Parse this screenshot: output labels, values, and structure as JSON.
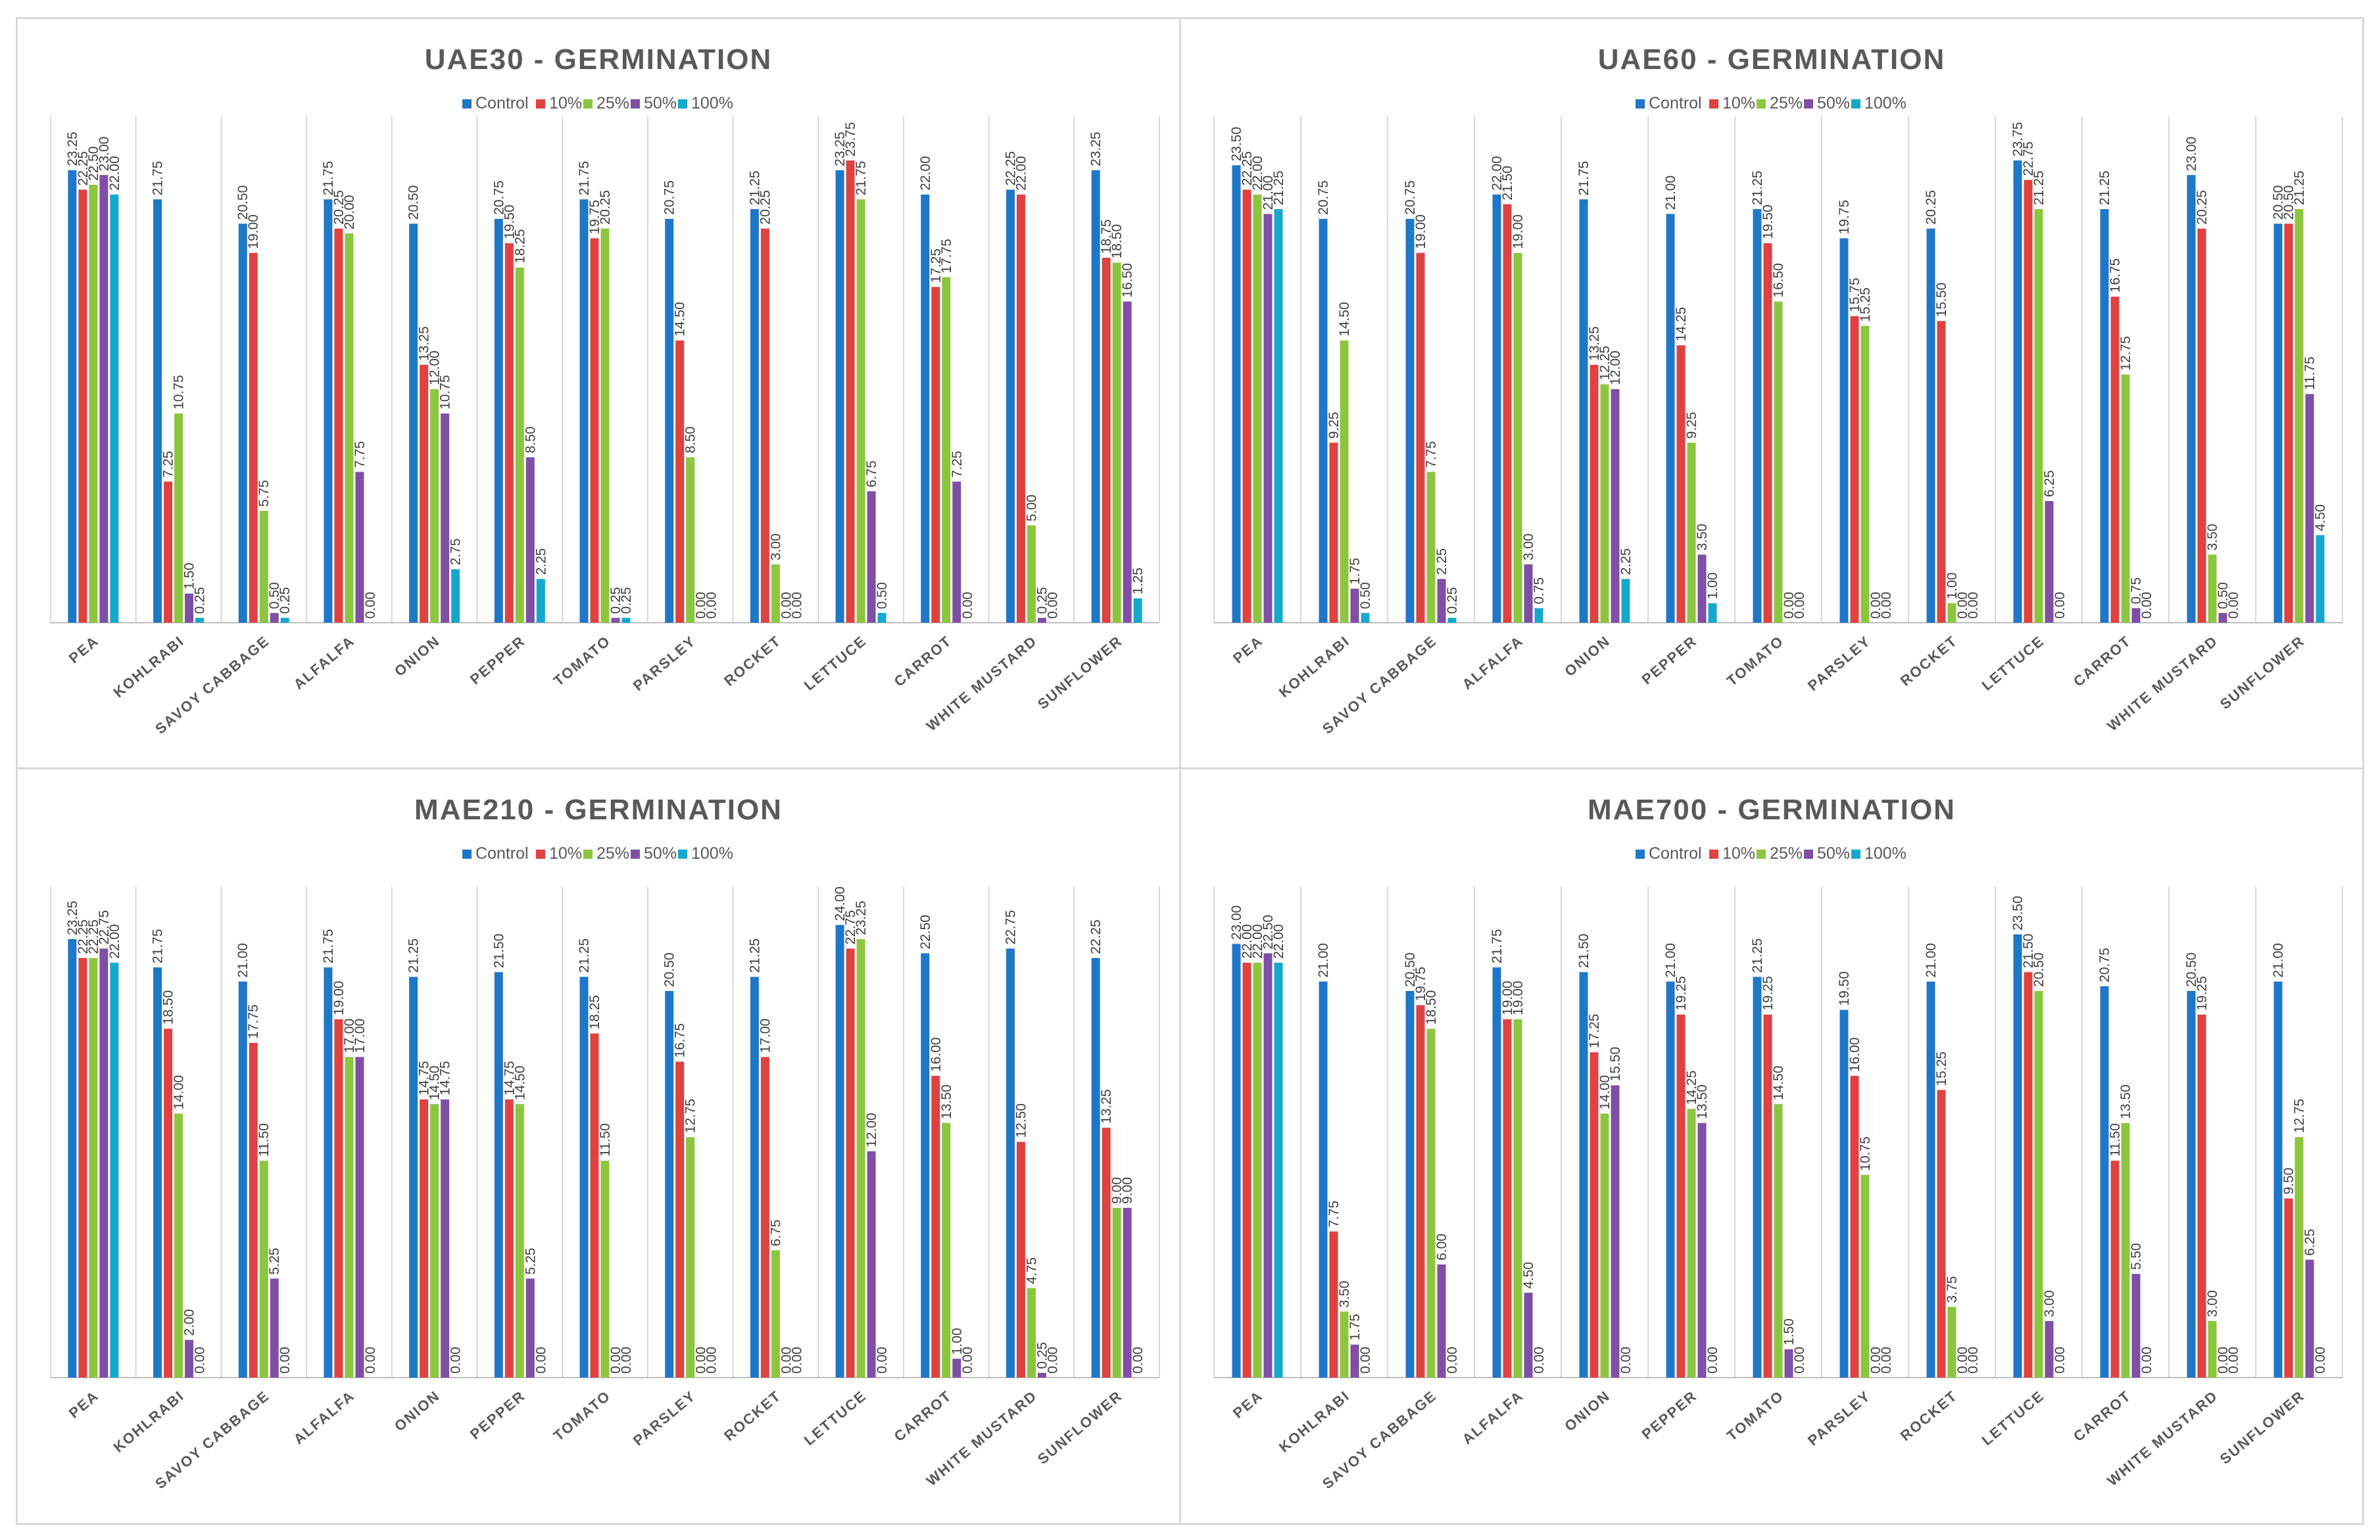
{
  "series_colors": [
    "#1f77c8",
    "#e04141",
    "#8cc63f",
    "#7f4fa5",
    "#14a9cc"
  ],
  "chart_data": [
    {
      "type": "bar",
      "title": "UAE30  -  GERMINATION",
      "legend_position": "top",
      "ylim": [
        0,
        25
      ],
      "categories": [
        "PEA",
        "KOHLRABI",
        "SAVOY CABBAGE",
        "ALFALFA",
        "ONION",
        "PEPPER",
        "TOMATO",
        "PARSLEY",
        "ROCKET",
        "LETTUCE",
        "CARROT",
        "WHITE MUSTARD",
        "SUNFLOWER"
      ],
      "series": [
        {
          "name": "Control",
          "values": [
            23.25,
            21.75,
            20.5,
            21.75,
            20.5,
            20.75,
            21.75,
            20.75,
            21.25,
            23.25,
            22.0,
            22.25,
            23.25
          ]
        },
        {
          "name": "10%",
          "values": [
            22.25,
            7.25,
            19.0,
            20.25,
            13.25,
            19.5,
            19.75,
            14.5,
            20.25,
            23.75,
            17.25,
            22.0,
            18.75
          ]
        },
        {
          "name": "25%",
          "values": [
            22.5,
            10.75,
            5.75,
            20.0,
            12.0,
            18.25,
            20.25,
            8.5,
            3.0,
            21.75,
            17.75,
            5.0,
            18.5
          ]
        },
        {
          "name": "50%",
          "values": [
            23.0,
            1.5,
            0.5,
            7.75,
            10.75,
            8.5,
            0.25,
            0.0,
            0.0,
            6.75,
            7.25,
            0.25,
            16.5
          ]
        },
        {
          "name": "100%",
          "values": [
            22.0,
            0.25,
            0.25,
            0.0,
            2.75,
            2.25,
            0.25,
            0.0,
            0.0,
            0.5,
            0.0,
            0.0,
            1.25
          ]
        }
      ],
      "labels": [
        [
          "23.25",
          "22.25",
          "22.50",
          "23.00",
          "22.00"
        ],
        [
          "21.75",
          "7.25",
          "10.75",
          "1.50",
          "0.25"
        ],
        [
          "20.50",
          "19.00",
          "5.75",
          "0.50",
          "0.25"
        ],
        [
          "21.75",
          "20.25",
          "20.00",
          "7.75",
          "0.00"
        ],
        [
          "20.50",
          "13.25",
          "12.00",
          "10.75",
          "2.75"
        ],
        [
          "20.75",
          "19.50",
          "18.25",
          "8.50",
          "2.25"
        ],
        [
          "21.75",
          "19.75",
          "20.25",
          "0.25",
          "0.25"
        ],
        [
          "20.75",
          "14.50",
          "8.50",
          "0.00",
          "0.00"
        ],
        [
          "21.25",
          "20.25",
          "3.00",
          "0.00",
          "0.00"
        ],
        [
          "23.25",
          "23.75",
          "21.75",
          "6.75",
          "0.50"
        ],
        [
          "22.00",
          "17.25",
          "17.75",
          "7.25",
          "0.00"
        ],
        [
          "22.25",
          "22.00",
          "5.00",
          "0.25",
          "0.00"
        ],
        [
          "23.25",
          "18.75",
          "18.50",
          "16.50",
          "1.25"
        ]
      ]
    },
    {
      "type": "bar",
      "title": "UAE60  -  GERMINATION",
      "legend_position": "top",
      "ylim": [
        0,
        25
      ],
      "categories": [
        "PEA",
        "KOHLRABI",
        "SAVOY CABBAGE",
        "ALFALFA",
        "ONION",
        "PEPPER",
        "TOMATO",
        "PARSLEY",
        "ROCKET",
        "LETTUCE",
        "CARROT",
        "WHITE MUSTARD",
        "SUNFLOWER"
      ],
      "series": [
        {
          "name": "Control",
          "values": [
            23.5,
            20.75,
            20.75,
            22.0,
            21.75,
            21.0,
            21.25,
            19.75,
            20.25,
            23.75,
            21.25,
            23.0,
            20.5
          ]
        },
        {
          "name": "10%",
          "values": [
            22.25,
            9.25,
            19.0,
            21.5,
            13.25,
            14.25,
            19.5,
            15.75,
            15.5,
            22.75,
            16.75,
            20.25,
            20.5
          ]
        },
        {
          "name": "25%",
          "values": [
            22.0,
            14.5,
            7.75,
            19.0,
            12.25,
            9.25,
            16.5,
            15.25,
            1.0,
            21.25,
            12.75,
            3.5,
            21.25
          ]
        },
        {
          "name": "50%",
          "values": [
            21.0,
            1.75,
            2.25,
            3.0,
            12.0,
            3.5,
            0.0,
            0.0,
            0.0,
            6.25,
            0.75,
            0.5,
            11.75
          ]
        },
        {
          "name": "100%",
          "values": [
            21.25,
            0.5,
            0.25,
            0.75,
            2.25,
            1.0,
            0.0,
            0.0,
            0.0,
            0.0,
            0.0,
            0.0,
            4.5
          ]
        }
      ],
      "labels": [
        [
          "23.50",
          "22.25",
          "22.00",
          "21.00",
          "21.25"
        ],
        [
          "20.75",
          "9.25",
          "14.50",
          "1.75",
          "0.50"
        ],
        [
          "20.75",
          "19.00",
          "7.75",
          "2.25",
          "0.25"
        ],
        [
          "22.00",
          "21.50",
          "19.00",
          "3.00",
          "0.75"
        ],
        [
          "21.75",
          "13.25",
          "12.25",
          "12.00",
          "2.25"
        ],
        [
          "21.00",
          "14.25",
          "9.25",
          "3.50",
          "1.00"
        ],
        [
          "21.25",
          "19.50",
          "16.50",
          "0.00",
          "0.00"
        ],
        [
          "19.75",
          "15.75",
          "15.25",
          "0.00",
          "0.00"
        ],
        [
          "20.25",
          "15.50",
          "1.00",
          "0.00",
          "0.00"
        ],
        [
          "23.75",
          "22.75",
          "21.25",
          "6.25",
          "0.00"
        ],
        [
          "21.25",
          "16.75",
          "12.75",
          "0.75",
          "0.00"
        ],
        [
          "23.00",
          "20.25",
          "3.50",
          "0.50",
          "0.00"
        ],
        [
          "20.50",
          "20.50",
          "21.25",
          "11.75",
          "4.50"
        ]
      ]
    },
    {
      "type": "bar",
      "title": "MAE210  -  GERMINATION",
      "legend_position": "top",
      "ylim": [
        0,
        25
      ],
      "categories": [
        "PEA",
        "KOHLRABI",
        "SAVOY CABBAGE",
        "ALFALFA",
        "ONION",
        "PEPPER",
        "TOMATO",
        "PARSLEY",
        "ROCKET",
        "LETTUCE",
        "CARROT",
        "WHITE MUSTARD",
        "SUNFLOWER"
      ],
      "series": [
        {
          "name": "Control",
          "values": [
            23.25,
            21.75,
            21.0,
            21.75,
            21.25,
            21.5,
            21.25,
            20.5,
            21.25,
            24.0,
            22.5,
            22.75,
            22.25
          ]
        },
        {
          "name": "10%",
          "values": [
            22.25,
            18.5,
            17.75,
            19.0,
            14.75,
            14.75,
            18.25,
            16.75,
            17.0,
            22.75,
            16.0,
            12.5,
            13.25
          ]
        },
        {
          "name": "25%",
          "values": [
            22.25,
            14.0,
            11.5,
            17.0,
            14.5,
            14.5,
            11.5,
            12.75,
            6.75,
            23.25,
            13.5,
            4.75,
            9.0
          ]
        },
        {
          "name": "50%",
          "values": [
            22.75,
            2.0,
            5.25,
            17.0,
            14.75,
            5.25,
            0.0,
            0.0,
            0.0,
            12.0,
            1.0,
            0.25,
            9.0
          ]
        },
        {
          "name": "100%",
          "values": [
            22.0,
            0.0,
            0.0,
            0.0,
            0.0,
            0.0,
            0.0,
            0.0,
            0.0,
            0.0,
            0.0,
            0.0,
            0.0
          ]
        }
      ],
      "labels": [
        [
          "23.25",
          "22.25",
          "22.25",
          "22.75",
          "22.00"
        ],
        [
          "21.75",
          "18.50",
          "14.00",
          "2.00",
          "0.00"
        ],
        [
          "21.00",
          "17.75",
          "11.50",
          "5.25",
          "0.00"
        ],
        [
          "21.75",
          "19.00",
          "17.00",
          "17.00",
          "0.00"
        ],
        [
          "21.25",
          "14.75",
          "14.50",
          "14.75",
          "0.00"
        ],
        [
          "21.50",
          "14.75",
          "14.50",
          "5.25",
          "0.00"
        ],
        [
          "21.25",
          "18.25",
          "11.50",
          "0.00",
          "0.00"
        ],
        [
          "20.50",
          "16.75",
          "12.75",
          "0.00",
          "0.00"
        ],
        [
          "21.25",
          "17.00",
          "6.75",
          "0.00",
          "0.00"
        ],
        [
          "24.00",
          "22.75",
          "23.25",
          "12.00",
          "0.00"
        ],
        [
          "22.50",
          "16.00",
          "13.50",
          "1.00",
          "0.00"
        ],
        [
          "22.75",
          "12.50",
          "4.75",
          "0.25",
          "0.00"
        ],
        [
          "22.25",
          "13.25",
          "9.00",
          "9.00",
          "0.00"
        ]
      ]
    },
    {
      "type": "bar",
      "title": "MAE700  -  GERMINATION",
      "legend_position": "top",
      "ylim": [
        0,
        25
      ],
      "categories": [
        "PEA",
        "KOHLRABI",
        "SAVOY CABBAGE",
        "ALFALFA",
        "ONION",
        "PEPPER",
        "TOMATO",
        "PARSLEY",
        "ROCKET",
        "LETTUCE",
        "CARROT",
        "WHITE MUSTARD",
        "SUNFLOWER"
      ],
      "series": [
        {
          "name": "Control",
          "values": [
            23.0,
            21.0,
            20.5,
            21.75,
            21.5,
            21.0,
            21.25,
            19.5,
            21.0,
            23.5,
            20.75,
            20.5,
            21.0
          ]
        },
        {
          "name": "10%",
          "values": [
            22.0,
            7.75,
            19.75,
            19.0,
            17.25,
            19.25,
            19.25,
            16.0,
            15.25,
            21.5,
            11.5,
            19.25,
            9.5
          ]
        },
        {
          "name": "25%",
          "values": [
            22.0,
            3.5,
            18.5,
            19.0,
            14.0,
            14.25,
            14.5,
            10.75,
            3.75,
            20.5,
            13.5,
            3.0,
            12.75
          ]
        },
        {
          "name": "50%",
          "values": [
            22.5,
            1.75,
            6.0,
            4.5,
            15.5,
            13.5,
            1.5,
            0.0,
            0.0,
            3.0,
            5.5,
            0.0,
            6.25
          ]
        },
        {
          "name": "100%",
          "values": [
            22.0,
            0.0,
            0.0,
            0.0,
            0.0,
            0.0,
            0.0,
            0.0,
            0.0,
            0.0,
            0.0,
            0.0,
            0.0
          ]
        }
      ],
      "labels": [
        [
          "23.00",
          "22.00",
          "22.00",
          "22.50",
          "22.00"
        ],
        [
          "21.00",
          "7.75",
          "3.50",
          "1.75",
          "0.00"
        ],
        [
          "20.50",
          "19.75",
          "18.50",
          "6.00",
          "0.00"
        ],
        [
          "21.75",
          "19.00",
          "19.00",
          "4.50",
          "0.00"
        ],
        [
          "21.50",
          "17.25",
          "14.00",
          "15.50",
          "0.00"
        ],
        [
          "21.00",
          "19.25",
          "14.25",
          "13.50",
          "0.00"
        ],
        [
          "21.25",
          "19.25",
          "14.50",
          "1.50",
          "0.00"
        ],
        [
          "19.50",
          "16.00",
          "10.75",
          "0.00",
          "0.00"
        ],
        [
          "21.00",
          "15.25",
          "3.75",
          "0.00",
          "0.00"
        ],
        [
          "23.50",
          "21.50",
          "20.50",
          "3.00",
          "0.00"
        ],
        [
          "20.75",
          "11.50",
          "13.50",
          "5.50",
          "0.00"
        ],
        [
          "20.50",
          "19.25",
          "3.00",
          "0.00",
          "0.00"
        ],
        [
          "21.00",
          "9.50",
          "12.75",
          "6.25",
          "0.00"
        ]
      ]
    }
  ]
}
